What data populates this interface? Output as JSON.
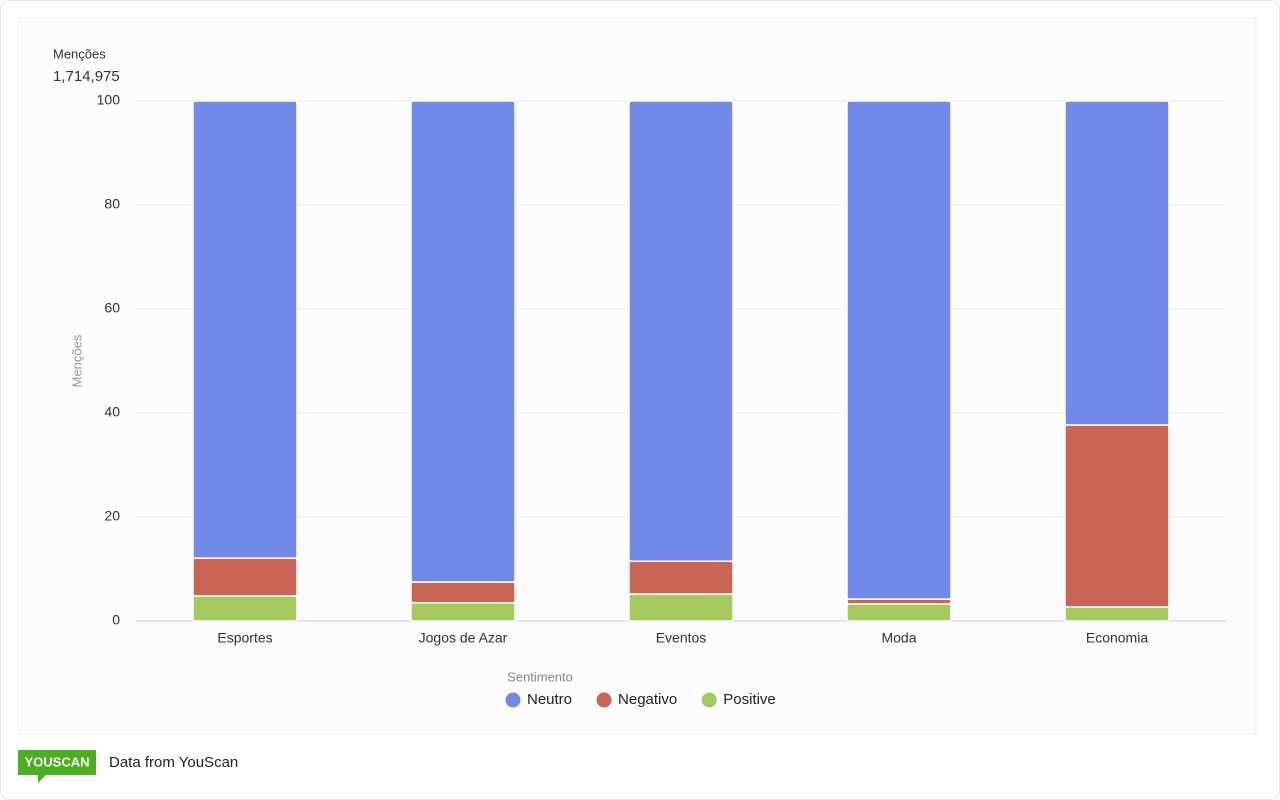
{
  "chart_data": {
    "type": "bar",
    "stacked": true,
    "title": "Menções",
    "subtitle": "1,714,975",
    "y_label": "Menções",
    "categories": [
      "Esportes",
      "Jogos de Azar",
      "Eventos",
      "Moda",
      "Economia"
    ],
    "series": [
      {
        "name": "Neutro",
        "color": "#7289e8",
        "values": [
          87.9,
          92.5,
          88.5,
          95.8,
          62.3
        ]
      },
      {
        "name": "Negativo",
        "color": "#c96554",
        "values": [
          7.3,
          4.0,
          6.3,
          0.9,
          35.0
        ]
      },
      {
        "name": "Positive",
        "color": "#a3c95f",
        "values": [
          4.8,
          3.5,
          5.2,
          3.3,
          2.7
        ]
      }
    ],
    "ylim": [
      0,
      100
    ],
    "yticks": [
      0,
      20,
      40,
      60,
      80,
      100
    ],
    "grid": true,
    "legend_title": "Sentimento",
    "legend_position": "bottom"
  },
  "footer": {
    "logo": "YOUSCAN",
    "text": "Data from YouScan"
  }
}
